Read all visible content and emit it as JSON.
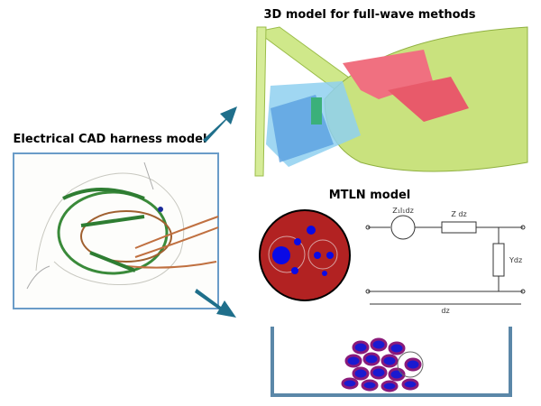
{
  "titles": {
    "full_wave": "3D model for full-wave methods",
    "cad": "Electrical CAD harness model",
    "mtln": "MTLN model"
  },
  "circuit": {
    "source": "Z₁I₁dz",
    "series": "Z dz",
    "shunt": "Ydz",
    "length": "dz"
  }
}
